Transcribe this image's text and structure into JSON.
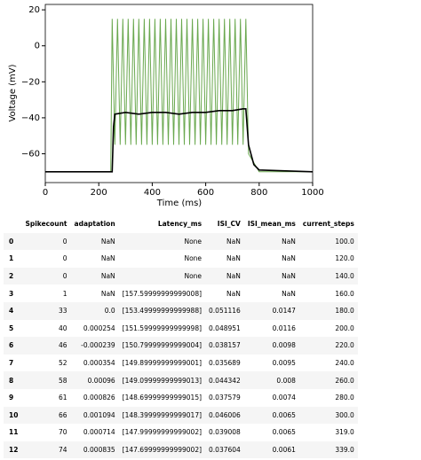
{
  "chart_data": {
    "type": "line",
    "xlabel": "Time (ms)",
    "ylabel": "Voltage (mV)",
    "xlim": [
      0,
      1000
    ],
    "xticks": [
      0,
      200,
      400,
      600,
      800,
      1000
    ],
    "ylim": [
      -76,
      23
    ],
    "yticks": [
      {
        "value": -60,
        "label": "−60"
      },
      {
        "value": -40,
        "label": "−40"
      },
      {
        "value": -20,
        "label": "−20"
      },
      0,
      20
    ],
    "series": [
      {
        "color": "#6aa84f",
        "x": [
          0,
          245,
          250,
          260,
          270,
          280,
          290,
          300,
          310,
          320,
          330,
          340,
          350,
          360,
          370,
          380,
          390,
          400,
          410,
          420,
          430,
          440,
          450,
          460,
          470,
          480,
          490,
          500,
          510,
          520,
          530,
          540,
          550,
          560,
          570,
          580,
          590,
          600,
          610,
          620,
          630,
          640,
          650,
          660,
          670,
          680,
          690,
          700,
          710,
          720,
          730,
          740,
          750,
          760,
          800,
          1000
        ],
        "values": [
          -70,
          -70,
          15,
          -55,
          15,
          -55,
          15,
          -55,
          15,
          -55,
          15,
          -55,
          15,
          -55,
          15,
          -55,
          15,
          -55,
          15,
          -55,
          15,
          -55,
          15,
          -55,
          15,
          -55,
          15,
          -55,
          15,
          -55,
          15,
          -55,
          15,
          -55,
          15,
          -55,
          15,
          -55,
          15,
          -55,
          15,
          -55,
          15,
          -55,
          15,
          -55,
          15,
          -55,
          15,
          -55,
          15,
          -55,
          15,
          -60,
          -70,
          -70
        ]
      },
      {
        "color": "#000000",
        "x": [
          0,
          240,
          250,
          255,
          260,
          300,
          350,
          400,
          450,
          500,
          550,
          600,
          650,
          700,
          740,
          750,
          760,
          780,
          800,
          1000
        ],
        "values": [
          -70,
          -70,
          -70,
          -45,
          -38,
          -37,
          -38,
          -37,
          -37,
          -38,
          -37,
          -37,
          -36,
          -36,
          -35,
          -35,
          -55,
          -66,
          -69,
          -70
        ]
      }
    ]
  },
  "table": {
    "columns": [
      "Spikecount",
      "adaptation",
      "Latency_ms",
      "ISI_CV",
      "ISI_mean_ms",
      "current_steps"
    ],
    "rows": [
      [
        "0",
        "0",
        "NaN",
        "None",
        "NaN",
        "NaN",
        "100.0"
      ],
      [
        "1",
        "0",
        "NaN",
        "None",
        "NaN",
        "NaN",
        "120.0"
      ],
      [
        "2",
        "0",
        "NaN",
        "None",
        "NaN",
        "NaN",
        "140.0"
      ],
      [
        "3",
        "1",
        "NaN",
        "[157.59999999999008]",
        "NaN",
        "NaN",
        "160.0"
      ],
      [
        "4",
        "33",
        "0.0",
        "[153.49999999999988]",
        "0.051116",
        "0.0147",
        "180.0"
      ],
      [
        "5",
        "40",
        "0.000254",
        "[151.59999999999998]",
        "0.048951",
        "0.0116",
        "200.0"
      ],
      [
        "6",
        "46",
        "-0.000239",
        "[150.79999999999004]",
        "0.038157",
        "0.0098",
        "220.0"
      ],
      [
        "7",
        "52",
        "0.000354",
        "[149.89999999999001]",
        "0.035689",
        "0.0095",
        "240.0"
      ],
      [
        "8",
        "58",
        "0.00096",
        "[149.09999999999013]",
        "0.044342",
        "0.008",
        "260.0"
      ],
      [
        "9",
        "61",
        "0.000826",
        "[148.69999999999015]",
        "0.037579",
        "0.0074",
        "280.0"
      ],
      [
        "10",
        "66",
        "0.001094",
        "[148.39999999999017]",
        "0.046006",
        "0.0065",
        "300.0"
      ],
      [
        "11",
        "70",
        "0.000714",
        "[147.99999999999002]",
        "0.039008",
        "0.0065",
        "319.0"
      ],
      [
        "12",
        "74",
        "0.000835",
        "[147.69999999999002]",
        "0.037604",
        "0.0061",
        "339.0"
      ]
    ]
  }
}
